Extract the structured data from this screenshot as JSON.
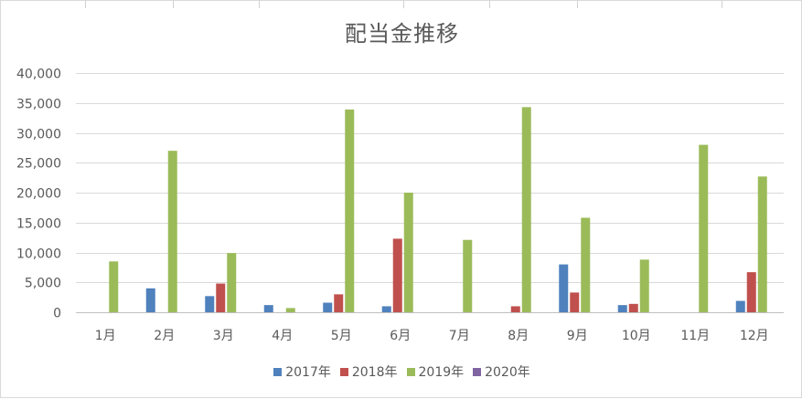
{
  "chart_data": {
    "type": "bar",
    "title": "配当金推移",
    "xlabel": "",
    "ylabel": "",
    "categories": [
      "1月",
      "2月",
      "3月",
      "4月",
      "5月",
      "6月",
      "7月",
      "8月",
      "9月",
      "10月",
      "11月",
      "12月"
    ],
    "ylim": [
      0,
      40000
    ],
    "yticks": [
      "0",
      "5,000",
      "10,000",
      "15,000",
      "20,000",
      "25,000",
      "30,000",
      "35,000",
      "40,000"
    ],
    "grid": true,
    "legend_position": "bottom",
    "series": [
      {
        "name": "2017年",
        "color": "#4f81bd",
        "values": [
          0,
          4000,
          2700,
          1200,
          1600,
          1000,
          0,
          0,
          8000,
          1200,
          0,
          1900
        ]
      },
      {
        "name": "2018年",
        "color": "#c0504d",
        "values": [
          0,
          0,
          4800,
          0,
          3000,
          12300,
          0,
          1000,
          3300,
          1400,
          0,
          6700
        ]
      },
      {
        "name": "2019年",
        "color": "#9bbb59",
        "values": [
          8500,
          27000,
          9900,
          700,
          33900,
          20000,
          12100,
          34300,
          15800,
          8800,
          28000,
          22700
        ]
      },
      {
        "name": "2020年",
        "color": "#8064a2",
        "values": [
          0,
          0,
          0,
          0,
          0,
          0,
          0,
          0,
          0,
          0,
          0,
          0
        ]
      }
    ]
  }
}
